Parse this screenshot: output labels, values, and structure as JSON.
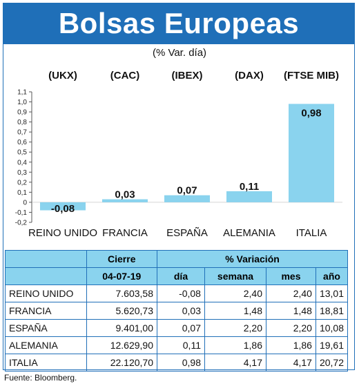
{
  "title": "Bolsas Europeas",
  "subtitle": "(% Var. día)",
  "source": "Fuente: Bloomberg.",
  "colors": {
    "accent": "#1f6fb8",
    "bar": "#8ad3ee",
    "bar_highlight": "#8ad3ee"
  },
  "chart_data": {
    "type": "bar",
    "ylim": [
      -0.2,
      1.1
    ],
    "yticks": [
      "1,1",
      "1,0",
      "0,9",
      "0,8",
      "0,7",
      "0,6",
      "0,5",
      "0,4",
      "0,3",
      "0,2",
      "0,1",
      "0",
      "-0,1",
      "-0,2"
    ],
    "ytick_values": [
      1.1,
      1.0,
      0.9,
      0.8,
      0.7,
      0.6,
      0.5,
      0.4,
      0.3,
      0.2,
      0.1,
      0,
      -0.1,
      -0.2
    ],
    "indices": [
      "(UKX)",
      "(CAC)",
      "(IBEX)",
      "(DAX)",
      "(FTSE MIB)"
    ],
    "categories": [
      "REINO UNIDO",
      "FRANCIA",
      "ESPAÑA",
      "ALEMANIA",
      "ITALIA"
    ],
    "values": [
      -0.08,
      0.03,
      0.07,
      0.11,
      0.98
    ],
    "value_labels": [
      "-0,08",
      "0,03",
      "0,07",
      "0,11",
      "0,98"
    ]
  },
  "table": {
    "header1": {
      "cierre": "Cierre",
      "variacion": "% Variación"
    },
    "header2": {
      "date": "04-07-19",
      "dia": "día",
      "semana": "semana",
      "mes": "mes",
      "ano": "año"
    },
    "rows": [
      {
        "country": "REINO UNIDO",
        "cierre": "7.603,58",
        "dia": "-0,08",
        "semana": "2,40",
        "mes": "2,40",
        "ano": "13,01"
      },
      {
        "country": "FRANCIA",
        "cierre": "5.620,73",
        "dia": "0,03",
        "semana": "1,48",
        "mes": "1,48",
        "ano": "18,81"
      },
      {
        "country": "ESPAÑA",
        "cierre": "9.401,00",
        "dia": "0,07",
        "semana": "2,20",
        "mes": "2,20",
        "ano": "10,08"
      },
      {
        "country": "ALEMANIA",
        "cierre": "12.629,90",
        "dia": "0,11",
        "semana": "1,86",
        "mes": "1,86",
        "ano": "19,61"
      },
      {
        "country": "ITALIA",
        "cierre": "22.120,70",
        "dia": "0,98",
        "semana": "4,17",
        "mes": "4,17",
        "ano": "20,72"
      }
    ]
  }
}
